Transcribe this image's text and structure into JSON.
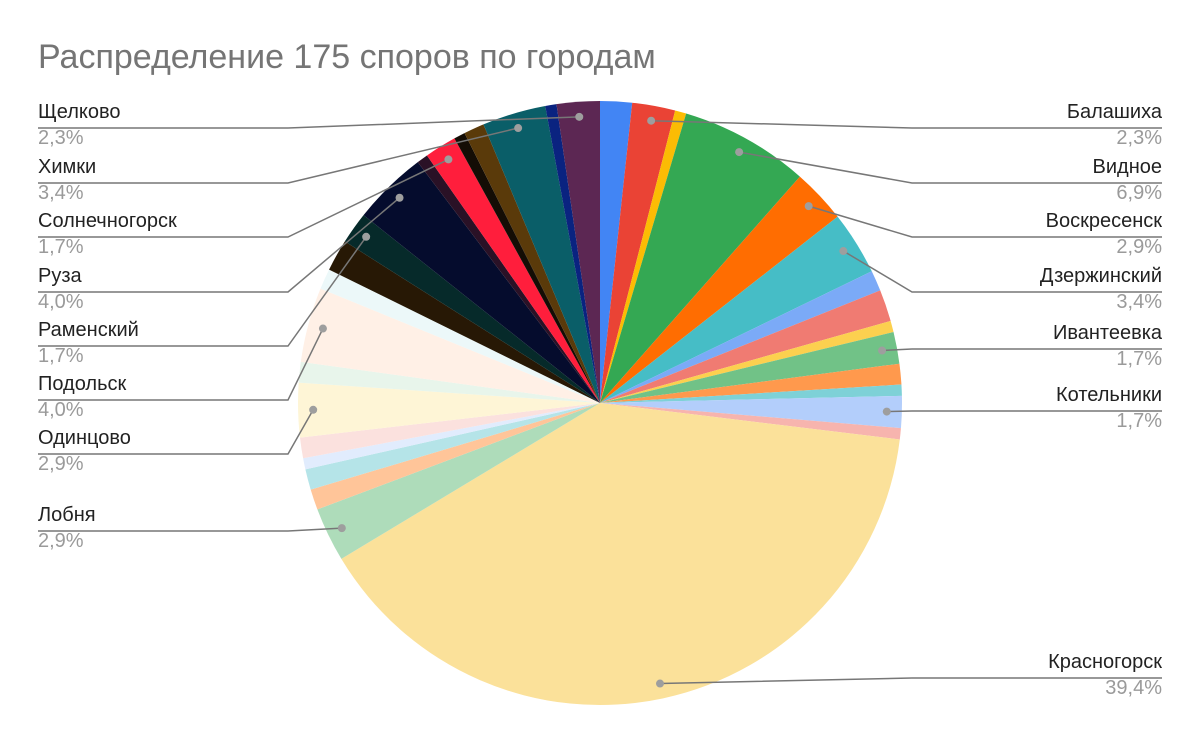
{
  "chart_data": {
    "type": "pie",
    "title": "Распределение 175 споров по городам",
    "categories": [
      null,
      "Балашиха",
      null,
      "Видное",
      "Воскресенск",
      "Дзержинский",
      null,
      null,
      null,
      "Ивантеевка",
      null,
      null,
      "Котельники",
      null,
      "Красногорск",
      "Лобня",
      null,
      null,
      null,
      null,
      "Одинцово",
      null,
      "Подольск",
      null,
      null,
      "Раменский",
      "Руза",
      null,
      "Солнечногорск",
      null,
      null,
      "Химки",
      null,
      "Щелково"
    ],
    "values": [
      1.7,
      2.3,
      0.6,
      6.9,
      2.9,
      3.4,
      1.1,
      1.7,
      0.6,
      1.7,
      1.1,
      0.6,
      1.7,
      0.6,
      39.4,
      2.9,
      1.1,
      1.1,
      0.6,
      1.1,
      2.9,
      1.1,
      4.0,
      1.1,
      1.7,
      1.7,
      4.0,
      0.6,
      1.7,
      0.6,
      1.1,
      3.4,
      0.6,
      2.3
    ],
    "value_labels": [
      null,
      "2,3%",
      null,
      "6,9%",
      "2,9%",
      "3,4%",
      null,
      null,
      null,
      "1,7%",
      null,
      null,
      "1,7%",
      null,
      "39,4%",
      "2,9%",
      null,
      null,
      null,
      null,
      "2,9%",
      null,
      "4,0%",
      null,
      null,
      "1,7%",
      "4,0%",
      null,
      "1,7%",
      null,
      null,
      "3,4%",
      null,
      "2,3%"
    ],
    "colors": [
      "#4285f4",
      "#ea4335",
      "#fbbc04",
      "#34a853",
      "#ff6d01",
      "#46bdc6",
      "#7baaf7",
      "#f07b72",
      "#fcd04f",
      "#71c287",
      "#ff994d",
      "#7ed1d7",
      "#b3cefb",
      "#f7b4ae",
      "#fbe19a",
      "#aedcba",
      "#ffc599",
      "#b5e4e8",
      "#e1ecfd",
      "#fbe1de",
      "#fef5d6",
      "#e8f5eb",
      "#fff0e6",
      "#ecf8f9",
      "#271805",
      "#062a2a",
      "#050c2d",
      "#2a1126",
      "#ff1e3c",
      "#140d05",
      "#5a3a0a",
      "#0a5e68",
      "#0a2380",
      "#5c2753"
    ]
  }
}
